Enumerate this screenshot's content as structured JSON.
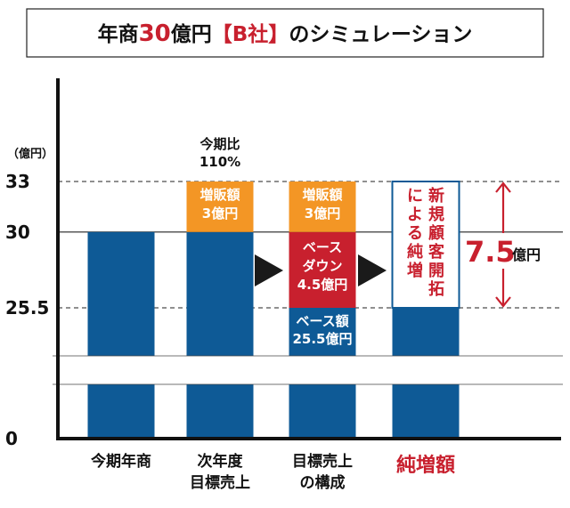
{
  "chart_data": {
    "type": "bar",
    "title": {
      "prefix": "年商",
      "accent": "30",
      "suffix": "億円",
      "bracket": "【B社】",
      "tail": "のシミュレーション"
    },
    "y_unit": "（億円）",
    "y_ticks": [
      "33",
      "30",
      "25.5",
      "0"
    ],
    "y_values": [
      33,
      30,
      25.5,
      0
    ],
    "categories": [
      {
        "lines": [
          "今期年商"
        ],
        "highlight": false
      },
      {
        "lines": [
          "次年度",
          "目標売上"
        ],
        "highlight": false
      },
      {
        "lines": [
          "目標売上",
          "の構成"
        ],
        "highlight": false
      },
      {
        "lines": [
          "純増額"
        ],
        "highlight": true
      }
    ],
    "bars": [
      {
        "base": 30
      },
      {
        "base": 30,
        "top": 3,
        "top_label": [
          "増販額",
          "3億円"
        ],
        "note": [
          "今期比",
          "110%"
        ]
      },
      {
        "base": 25.5,
        "top": 3,
        "top_label": [
          "増販額",
          "3億円"
        ],
        "middle": 4.5,
        "middle_label": [
          "ベース",
          "ダウン",
          "4.5億円"
        ],
        "base_label": [
          "ベース額",
          "25.5億円"
        ]
      },
      {
        "base": 25.5,
        "outline_top": 33,
        "outline_label": [
          "新規顧客開拓",
          "による純増"
        ]
      }
    ],
    "net_increase": {
      "value": "7.5",
      "unit": "億円"
    },
    "colors": {
      "blue": "#0e5a96",
      "orange": "#f39625",
      "red": "#c8202e",
      "black": "#1a1a1a"
    }
  }
}
